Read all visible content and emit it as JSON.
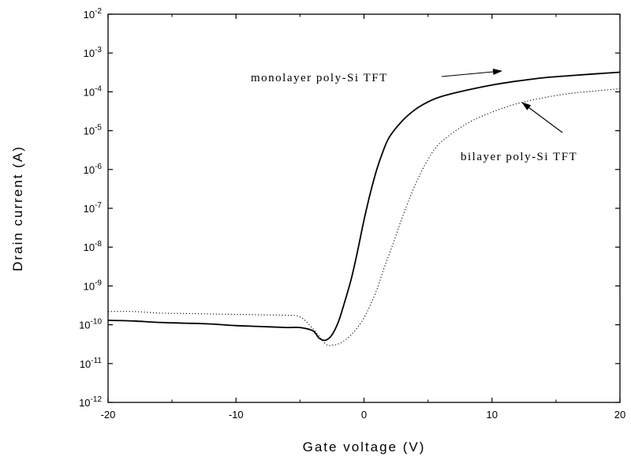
{
  "chart_data": {
    "type": "line",
    "xlabel": "Gate voltage (V)",
    "ylabel": "Drain current (A)",
    "xlim": [
      -20,
      20
    ],
    "ylim": [
      1e-12,
      0.01
    ],
    "yscale": "log",
    "x_ticks": [
      -20,
      -10,
      0,
      10,
      20
    ],
    "x_tick_labels": [
      "-20",
      "-10",
      "0",
      "10",
      "20"
    ],
    "y_ticks": [
      {
        "value": 0.01,
        "base": "10",
        "exp": "-2"
      },
      {
        "value": 0.001,
        "base": "10",
        "exp": "-3"
      },
      {
        "value": 0.0001,
        "base": "10",
        "exp": "-4"
      },
      {
        "value": 1e-05,
        "base": "10",
        "exp": "-5"
      },
      {
        "value": 1e-06,
        "base": "10",
        "exp": "-6"
      },
      {
        "value": 1e-07,
        "base": "10",
        "exp": "-7"
      },
      {
        "value": 1e-08,
        "base": "10",
        "exp": "-8"
      },
      {
        "value": 1e-09,
        "base": "10",
        "exp": "-9"
      },
      {
        "value": 1e-10,
        "base": "10",
        "exp": "-10"
      },
      {
        "value": 1e-11,
        "base": "10",
        "exp": "-11"
      },
      {
        "value": 1e-12,
        "base": "10",
        "exp": "-12"
      }
    ],
    "grid": false,
    "legend": "none",
    "series": [
      {
        "name": "monolayer poly-Si TFT",
        "style": "solid",
        "color": "#000000",
        "x": [
          -20,
          -18,
          -16,
          -14,
          -12,
          -10,
          -8,
          -6,
          -5,
          -4,
          -3.5,
          -3,
          -2.5,
          -2,
          -1.5,
          -1,
          -0.5,
          0,
          0.5,
          1,
          1.5,
          2,
          3,
          4,
          5,
          6,
          8,
          10,
          12,
          14,
          16,
          18,
          20
        ],
        "y": [
          1.3e-10,
          1.25e-10,
          1.15e-10,
          1.1e-10,
          1.05e-10,
          9.5e-11,
          9e-11,
          8.5e-11,
          8.5e-11,
          7e-11,
          4.5e-11,
          4e-11,
          5.5e-11,
          1.2e-10,
          4e-10,
          1.5e-09,
          8e-09,
          5e-08,
          2.5e-07,
          1e-06,
          3e-06,
          7e-06,
          1.8e-05,
          3.5e-05,
          5.5e-05,
          7.5e-05,
          0.00011,
          0.00015,
          0.00019,
          0.00023,
          0.00026,
          0.00029,
          0.00032
        ]
      },
      {
        "name": "bilayer poly-Si TFT",
        "style": "dotted",
        "color": "#000000",
        "x": [
          -20,
          -18,
          -16,
          -14,
          -12,
          -10,
          -8,
          -6,
          -5,
          -4,
          -3,
          -2.5,
          -2,
          -1.5,
          -1,
          0,
          1,
          1.5,
          2,
          2.5,
          3,
          4,
          5,
          6,
          8,
          10,
          12,
          14,
          16,
          18,
          20
        ],
        "y": [
          2.2e-10,
          2.2e-10,
          2e-10,
          1.95e-10,
          1.9e-10,
          1.85e-10,
          1.8e-10,
          1.75e-10,
          1.6e-10,
          8e-11,
          3.2e-11,
          3e-11,
          3.2e-11,
          4e-11,
          5.5e-11,
          1.5e-10,
          8e-10,
          2.5e-09,
          7e-09,
          2e-08,
          6e-08,
          4e-07,
          1.8e-06,
          5e-06,
          1.5e-05,
          3e-05,
          5e-05,
          7e-05,
          9e-05,
          0.000105,
          0.00012
        ]
      }
    ],
    "annotations": [
      {
        "text": "monolayer poly-Si TFT",
        "target_series": 0
      },
      {
        "text": "bilayer poly-Si TFT",
        "target_series": 1
      }
    ]
  }
}
